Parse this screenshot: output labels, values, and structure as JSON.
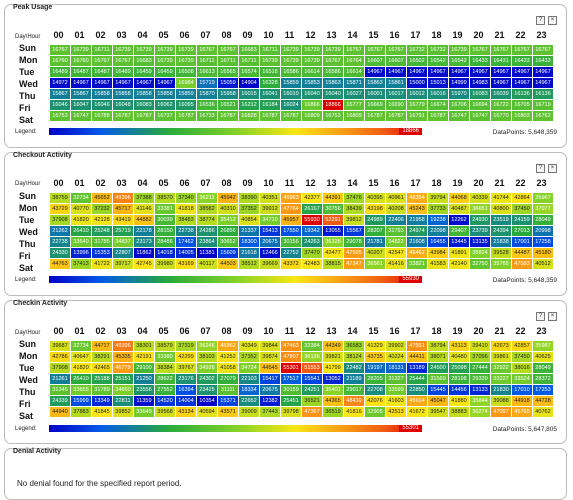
{
  "common": {
    "day_hour_label": "Day\\Hour",
    "hours": [
      "00",
      "01",
      "02",
      "03",
      "04",
      "05",
      "06",
      "07",
      "08",
      "09",
      "10",
      "11",
      "12",
      "13",
      "14",
      "15",
      "16",
      "17",
      "18",
      "19",
      "20",
      "21",
      "22",
      "23"
    ],
    "days": [
      "Sun",
      "Mon",
      "Tue",
      "Wed",
      "Thu",
      "Fri",
      "Sat"
    ],
    "legend_label": "Legend:",
    "icons": [
      "help-icon",
      "close-icon"
    ]
  },
  "panels": [
    {
      "title": "Peak Usage",
      "legend_max": "18866",
      "datapoints": "DataPoints: 5,648,359",
      "rows": [
        [
          16767,
          16739,
          16711,
          16739,
          16739,
          16739,
          16739,
          16767,
          16767,
          16683,
          16711,
          16739,
          16739,
          16739,
          16767,
          16767,
          16767,
          16732,
          16732,
          16739,
          16767,
          16767,
          16767,
          16767
        ],
        [
          16760,
          16760,
          16767,
          16767,
          16683,
          16739,
          16739,
          16711,
          16711,
          16711,
          16739,
          16739,
          16739,
          16767,
          16764,
          16607,
          16607,
          16502,
          16542,
          16542,
          16433,
          16431,
          16433,
          16433
        ],
        [
          16489,
          16487,
          16487,
          16489,
          16459,
          16459,
          16508,
          16613,
          16565,
          16574,
          16518,
          16586,
          16614,
          16586,
          16614,
          14967,
          14967,
          14967,
          14967,
          14967,
          14967,
          14967,
          14967,
          14967
        ],
        [
          14972,
          14967,
          14967,
          14967,
          14967,
          14967,
          16984,
          15719,
          15059,
          14904,
          16328,
          15859,
          15853,
          15863,
          15871,
          15863,
          15861,
          15000,
          15013,
          14999,
          14983,
          14967,
          14967,
          14967
        ],
        [
          15867,
          15867,
          15858,
          15858,
          15858,
          15858,
          15859,
          15870,
          15958,
          16015,
          16041,
          16010,
          16040,
          16040,
          16027,
          16001,
          16017,
          16012,
          16016,
          15970,
          16083,
          16039,
          16136,
          16136
        ],
        [
          16046,
          16047,
          16046,
          16048,
          16083,
          16062,
          16095,
          16536,
          16521,
          16212,
          16184,
          16024,
          16866,
          18866,
          16777,
          16669,
          16690,
          16779,
          16674,
          16706,
          16694,
          16722,
          16705,
          16719
        ],
        [
          16753,
          16747,
          16788,
          16787,
          16787,
          16737,
          16787,
          16733,
          16787,
          16828,
          16787,
          16787,
          16809,
          16753,
          16809,
          16787,
          16787,
          16791,
          16787,
          16747,
          16747,
          16770,
          16803,
          16762
        ]
      ]
    },
    {
      "title": "Checkout Activity",
      "legend_max": "55930",
      "datapoints": "DataPoints: 5,648,359",
      "rows": [
        [
          38759,
          32734,
          45652,
          49396,
          37388,
          38570,
          37340,
          36211,
          45942,
          38390,
          40351,
          46963,
          42377,
          44391,
          37476,
          40395,
          40961,
          46354,
          39794,
          44068,
          40339,
          41744,
          42864,
          35967
        ],
        [
          43729,
          40770,
          37232,
          45717,
          41146,
          33381,
          41818,
          38582,
          40310,
          37352,
          39912,
          47764,
          26167,
          30756,
          38439,
          43198,
          40208,
          45243,
          37733,
          40487,
          36651,
          40800,
          37450,
          37077
        ],
        [
          37908,
          41820,
          42128,
          43419,
          44882,
          30039,
          38483,
          38774,
          35412,
          40854,
          34710,
          45957,
          55930,
          52291,
          39812,
          24989,
          22406,
          21958,
          19238,
          12262,
          24930,
          23519,
          24159,
          28049
        ],
        [
          21262,
          26410,
          25248,
          25719,
          22178,
          28150,
          22738,
          24286,
          26856,
          21337,
          15413,
          17550,
          19342,
          13055,
          15567,
          28207,
          31793,
          24974,
          22098,
          29407,
          23739,
          24394,
          27013,
          20998
        ],
        [
          22738,
          33640,
          31785,
          34837,
          23173,
          28486,
          17462,
          23864,
          30652,
          18300,
          20675,
          30156,
          24263,
          36328,
          29078,
          21781,
          34822,
          21608,
          16455,
          13445,
          13135,
          21838,
          17001,
          17258
        ],
        [
          24330,
          13996,
          15353,
          22807,
          11862,
          14018,
          14005,
          11381,
          15609,
          21618,
          12466,
          22752,
          37470,
          42477,
          47595,
          40207,
          42547,
          46462,
          43984,
          41891,
          35824,
          39528,
          44487,
          45180
        ],
        [
          44763,
          37413,
          41722,
          39717,
          42745,
          39980,
          43169,
          40117,
          44503,
          38512,
          39669,
          43372,
          42483,
          38815,
          47347,
          36561,
          41416,
          33821,
          41583,
          42140,
          32750,
          35765,
          47583,
          40512
        ]
      ]
    },
    {
      "title": "Checkin Activity",
      "legend_max": "55301",
      "datapoints": "DataPoints: 5,647,805",
      "rows": [
        [
          39687,
          32734,
          44717,
          49396,
          38301,
          38579,
          37319,
          36246,
          45962,
          40349,
          39844,
          47463,
          32384,
          44349,
          36583,
          41329,
          39902,
          47551,
          38794,
          43113,
          39410,
          42673,
          42857,
          35987
        ],
        [
          42786,
          40647,
          38291,
          45335,
          42191,
          33380,
          42299,
          38103,
          41252,
          37352,
          39874,
          47807,
          36136,
          39821,
          38124,
          43735,
          40224,
          44411,
          38071,
          40480,
          37096,
          39861,
          37450,
          40625
        ],
        [
          37908,
          41820,
          42465,
          46779,
          29100,
          38384,
          39767,
          34926,
          41058,
          34724,
          44545,
          55301,
          51553,
          41799,
          22482,
          19197,
          18131,
          13189,
          24500,
          25098,
          27444,
          32922,
          38016,
          28049
        ],
        [
          21261,
          26410,
          25188,
          25151,
          21250,
          28622,
          23176,
          24302,
          27079,
          22103,
          15417,
          17517,
          15541,
          13052,
          21189,
          28205,
          31327,
          25444,
          31569,
          28198,
          29339,
          33227,
          33524,
          28372
        ],
        [
          31346,
          33655,
          31789,
          34650,
          23556,
          27552,
          16394,
          23425,
          31111,
          18334,
          20675,
          30159,
          24251,
          35401,
          29017,
          22708,
          33599,
          22850,
          15445,
          14456,
          13133,
          21830,
          17010,
          17253
        ],
        [
          24339,
          15999,
          13349,
          22811,
          11359,
          14520,
          14004,
          10354,
          15371,
          22652,
          12382,
          25451,
          36521,
          44365,
          48439,
          42076,
          41603,
          45914,
          45047,
          41880,
          35844,
          39088,
          44918,
          44728
        ],
        [
          44940,
          37883,
          41845,
          39852,
          33649,
          39568,
          43134,
          40594,
          43571,
          39009,
          37443,
          39798,
          47367,
          36519,
          41816,
          32905,
          42513,
          41672,
          39547,
          38883,
          36274,
          47097,
          45765,
          40762
        ]
      ]
    }
  ],
  "denial": {
    "title": "Denial Activity",
    "message": "No denial found for the specified report period."
  }
}
